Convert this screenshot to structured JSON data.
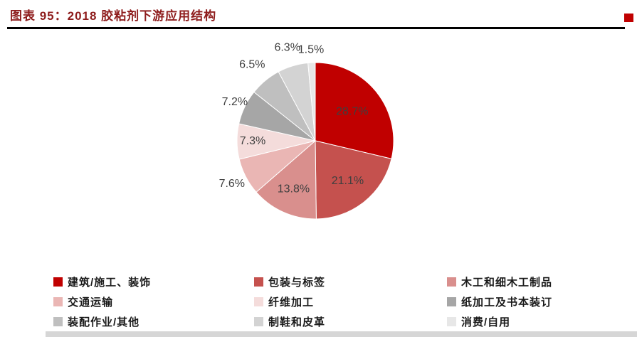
{
  "header": {
    "title": "图表 95：2018 胶粘剂下游应用结构"
  },
  "accent": {
    "title_color": "#8e1c1c",
    "header_rule_color": "#000000",
    "corner_square_color": "#c00000",
    "bottom_bar_color": "#d6d6d6",
    "label_text_color": "#3f3f3f"
  },
  "chart_data": {
    "type": "pie",
    "title": "2018 胶粘剂下游应用结构",
    "categories": [
      "建筑/施工、装饰",
      "包装与标签",
      "木工和细木工制品",
      "交通运输",
      "纤维加工",
      "纸加工及书本装订",
      "装配作业/其他",
      "制鞋和皮革",
      "消费/自用"
    ],
    "values": [
      28.7,
      21.1,
      13.8,
      7.6,
      7.3,
      7.2,
      6.5,
      6.3,
      1.5
    ],
    "labels": [
      "28.7%",
      "21.1%",
      "13.8%",
      "7.6%",
      "7.3%",
      "7.2%",
      "6.5%",
      "6.3%",
      "1.5%"
    ],
    "colors": [
      "#c00000",
      "#c5514e",
      "#d98f8d",
      "#eab6b4",
      "#f4dcdb",
      "#a6a6a6",
      "#bfbfbf",
      "#d3d3d3",
      "#e7e7e7"
    ],
    "start": "top",
    "direction": "clockwise",
    "legend_position": "bottom",
    "legend_columns": 3,
    "label_radius_factor": [
      0.6,
      0.66,
      0.68,
      1.2,
      0.8,
      1.14,
      1.26,
      1.24,
      1.16
    ]
  }
}
